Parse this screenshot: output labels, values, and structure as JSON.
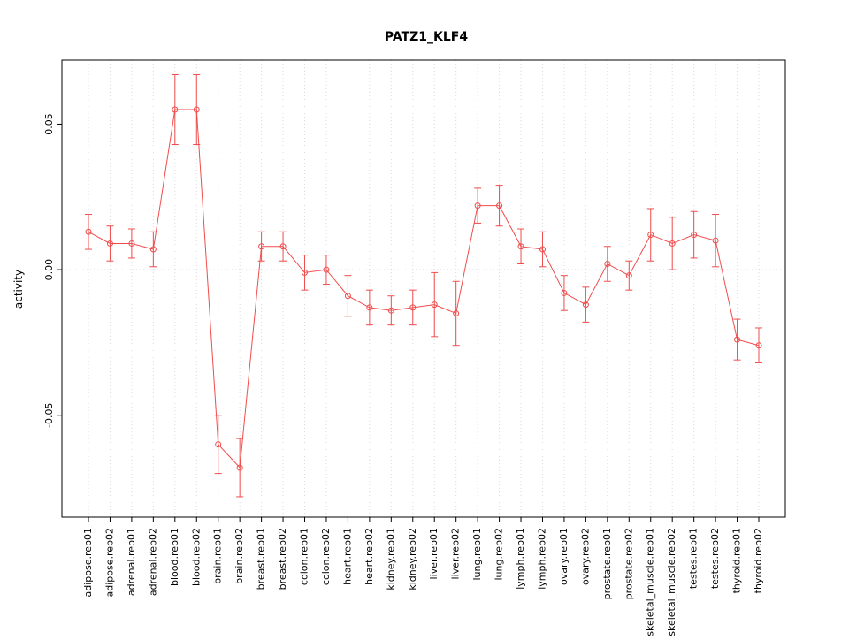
{
  "chart_data": {
    "type": "line",
    "title": "PATZ1_KLF4",
    "xlabel": "",
    "ylabel": "activity",
    "categories": [
      "adipose.rep01",
      "adipose.rep02",
      "adrenal.rep01",
      "adrenal.rep02",
      "blood.rep01",
      "blood.rep02",
      "brain.rep01",
      "brain.rep02",
      "breast.rep01",
      "breast.rep02",
      "colon.rep01",
      "colon.rep02",
      "heart.rep01",
      "heart.rep02",
      "kidney.rep01",
      "kidney.rep02",
      "liver.rep01",
      "liver.rep02",
      "lung.rep01",
      "lung.rep02",
      "lymph.rep01",
      "lymph.rep02",
      "ovary.rep01",
      "ovary.rep02",
      "prostate.rep01",
      "prostate.rep02",
      "skeletal_muscle.rep01",
      "skeletal_muscle.rep02",
      "testes.rep01",
      "testes.rep02",
      "thyroid.rep01",
      "thyroid.rep02"
    ],
    "values": [
      0.013,
      0.009,
      0.009,
      0.007,
      0.055,
      0.055,
      -0.06,
      -0.068,
      0.008,
      0.008,
      -0.001,
      0.0,
      -0.009,
      -0.013,
      -0.014,
      -0.013,
      -0.012,
      -0.015,
      0.022,
      0.022,
      0.008,
      0.007,
      -0.008,
      -0.012,
      0.002,
      -0.002,
      0.012,
      0.009,
      0.012,
      0.01,
      -0.024,
      -0.026
    ],
    "errors": [
      0.006,
      0.006,
      0.005,
      0.006,
      0.012,
      0.012,
      0.01,
      0.01,
      0.005,
      0.005,
      0.006,
      0.005,
      0.007,
      0.006,
      0.005,
      0.006,
      0.011,
      0.011,
      0.006,
      0.007,
      0.006,
      0.006,
      0.006,
      0.006,
      0.006,
      0.005,
      0.009,
      0.009,
      0.008,
      0.009,
      0.007,
      0.006
    ],
    "yticks": [
      -0.05,
      0.0,
      0.05
    ],
    "ylim": [
      -0.085,
      0.072
    ],
    "series_color": "#f04c4c",
    "grid_color": "#d9d9d9",
    "zero_line": true,
    "grid": true,
    "legend": "none"
  }
}
